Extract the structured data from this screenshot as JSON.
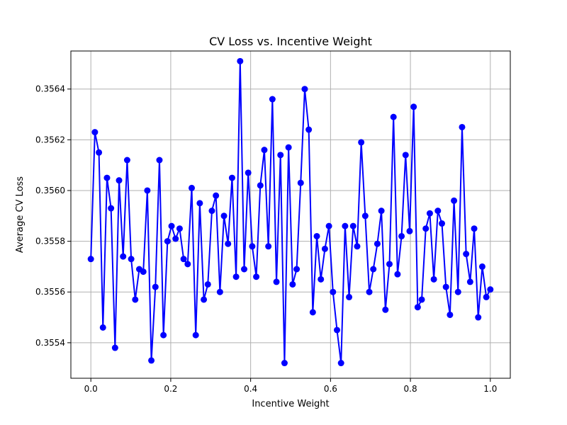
{
  "chart_data": {
    "type": "line",
    "title": "CV Loss vs. Incentive Weight",
    "xlabel": "Incentive Weight",
    "ylabel": "Average CV Loss",
    "xlim": [
      -0.05,
      1.05
    ],
    "ylim": [
      0.35526,
      0.35655
    ],
    "xticks": [
      0.0,
      0.2,
      0.4,
      0.6,
      0.8,
      1.0
    ],
    "xtick_labels": [
      "0.0",
      "0.2",
      "0.4",
      "0.6",
      "0.8",
      "1.0"
    ],
    "yticks": [
      0.3554,
      0.3556,
      0.3558,
      0.356,
      0.3562,
      0.3564
    ],
    "ytick_labels": [
      "0.3554",
      "0.3556",
      "0.3558",
      "0.3560",
      "0.3562",
      "0.3564"
    ],
    "grid": true,
    "series": [
      {
        "color": "#0000ff",
        "marker": "circle",
        "x": [
          0.0,
          0.0101,
          0.0202,
          0.0303,
          0.0404,
          0.0505,
          0.0606,
          0.0707,
          0.0808,
          0.0909,
          0.101,
          0.1111,
          0.1212,
          0.1313,
          0.1414,
          0.1515,
          0.1616,
          0.1717,
          0.1818,
          0.1919,
          0.202,
          0.2121,
          0.2222,
          0.2323,
          0.2424,
          0.2525,
          0.2626,
          0.2727,
          0.2828,
          0.2929,
          0.303,
          0.3131,
          0.3232,
          0.3333,
          0.3434,
          0.3535,
          0.3636,
          0.3737,
          0.3838,
          0.3939,
          0.404,
          0.4141,
          0.4242,
          0.4343,
          0.4444,
          0.4545,
          0.4646,
          0.4747,
          0.4848,
          0.4949,
          0.5051,
          0.5152,
          0.5253,
          0.5354,
          0.5455,
          0.5556,
          0.5657,
          0.5758,
          0.5859,
          0.596,
          0.6061,
          0.6162,
          0.6263,
          0.6364,
          0.6465,
          0.6566,
          0.6667,
          0.6768,
          0.6869,
          0.697,
          0.7071,
          0.7172,
          0.7273,
          0.7374,
          0.7475,
          0.7576,
          0.7677,
          0.7778,
          0.7879,
          0.798,
          0.8081,
          0.8182,
          0.8283,
          0.8384,
          0.8485,
          0.8586,
          0.8687,
          0.8788,
          0.8889,
          0.899,
          0.9091,
          0.9192,
          0.9293,
          0.9394,
          0.9495,
          0.9596,
          0.9697,
          0.9798,
          0.9899,
          1.0
        ],
        "values": [
          0.35573,
          0.35623,
          0.35615,
          0.35546,
          0.35605,
          0.35593,
          0.35538,
          0.35604,
          0.35574,
          0.35612,
          0.35573,
          0.35557,
          0.35569,
          0.35568,
          0.356,
          0.35533,
          0.35562,
          0.35612,
          0.35543,
          0.3558,
          0.35586,
          0.35581,
          0.35585,
          0.35573,
          0.35571,
          0.35601,
          0.35543,
          0.35595,
          0.35557,
          0.35563,
          0.35592,
          0.35598,
          0.3556,
          0.3559,
          0.35579,
          0.35605,
          0.35566,
          0.35651,
          0.35569,
          0.35607,
          0.35578,
          0.35566,
          0.35602,
          0.35616,
          0.35578,
          0.35636,
          0.35564,
          0.35614,
          0.35532,
          0.35617,
          0.35563,
          0.35569,
          0.35603,
          0.3564,
          0.35624,
          0.35552,
          0.35582,
          0.35565,
          0.35577,
          0.35586,
          0.3556,
          0.35545,
          0.35532,
          0.35586,
          0.35558,
          0.35586,
          0.35578,
          0.35619,
          0.3559,
          0.3556,
          0.35569,
          0.35579,
          0.35592,
          0.35553,
          0.35571,
          0.35629,
          0.35567,
          0.35582,
          0.35614,
          0.35584,
          0.35633,
          0.35554,
          0.35557,
          0.35585,
          0.35591,
          0.35565,
          0.35592,
          0.35587,
          0.35562,
          0.35551,
          0.35596,
          0.3556,
          0.35625,
          0.35575,
          0.35564,
          0.35585,
          0.3555,
          0.3557,
          0.35558,
          0.35561
        ]
      }
    ]
  }
}
